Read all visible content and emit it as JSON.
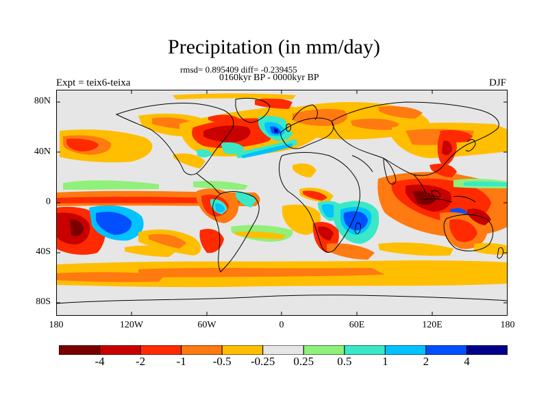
{
  "title": "Precipitation (in mm/day)",
  "stats": "rmsd= 0.895409 diff= -0.239455",
  "period": "0160kyr BP - 0000kyr BP",
  "experiment": "Expt = teix6-teixa",
  "season": "DJF",
  "lat_axis_labels": [
    "80N",
    "40N",
    "0",
    "40S",
    "80S"
  ],
  "lon_axis_labels": [
    "180",
    "120W",
    "60W",
    "0",
    "60E",
    "120E",
    "180"
  ],
  "colorbar": {
    "colors": [
      "#7a0000",
      "#c80000",
      "#ff2a00",
      "#ff7a10",
      "#ffbe00",
      "#e6e6e6",
      "#8ff07a",
      "#3ae8c8",
      "#00c2ff",
      "#0050ff",
      "#00008c"
    ],
    "labels": [
      "-4",
      "-2",
      "-1",
      "-0.5",
      "-0.25",
      "0.25",
      "0.5",
      "1",
      "2",
      "4"
    ]
  },
  "map_colors": {
    "background": "#e6e6e6",
    "coastline": "#000000"
  }
}
